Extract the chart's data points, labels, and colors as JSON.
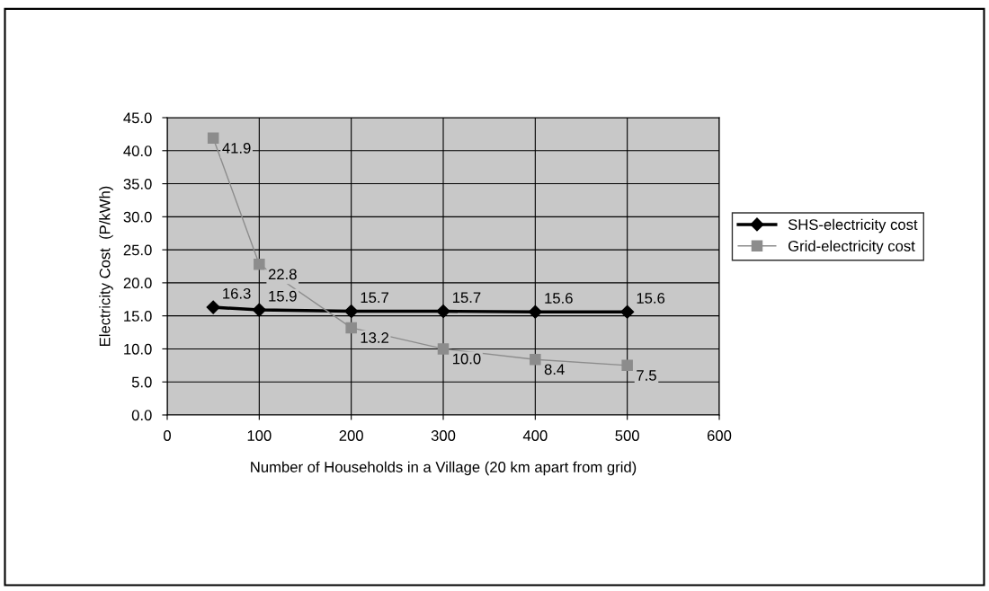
{
  "chart_data": {
    "type": "line",
    "xlabel": "Number of Households in a Village (20 km apart from grid)",
    "ylabel": "Electricity Cost  (P/kWh)",
    "x": [
      50,
      100,
      200,
      300,
      400,
      500
    ],
    "series": [
      {
        "name": "SHS-electricity cost",
        "color": "#000000",
        "marker": "diamond",
        "values": [
          16.3,
          15.9,
          15.7,
          15.7,
          15.6,
          15.6
        ],
        "value_labels": [
          "16.3",
          "15.9",
          "15.7",
          "15.7",
          "15.6",
          "15.6"
        ]
      },
      {
        "name": "Grid-electricity cost",
        "color": "#8c8c8c",
        "marker": "square",
        "values": [
          41.9,
          22.8,
          13.2,
          10.0,
          8.4,
          7.5
        ],
        "value_labels": [
          "41.9",
          "22.8",
          "13.2",
          "10.0",
          "8.4",
          "7.5"
        ]
      }
    ],
    "xlim": [
      0,
      600
    ],
    "xticks": [
      0,
      100,
      200,
      300,
      400,
      500,
      600
    ],
    "ylim": [
      0,
      45
    ],
    "yticks": [
      {
        "value": 0,
        "label": "0.0"
      },
      {
        "value": 5,
        "label": "5.0"
      },
      {
        "value": 10,
        "label": "10.0"
      },
      {
        "value": 15,
        "label": "15.0"
      },
      {
        "value": 20,
        "label": "20.0"
      },
      {
        "value": 25,
        "label": "25.0"
      },
      {
        "value": 30,
        "label": "30.0"
      },
      {
        "value": 35,
        "label": "35.0"
      },
      {
        "value": 40,
        "label": "40.0"
      },
      {
        "value": 45,
        "label": "45.0"
      }
    ],
    "grid": true,
    "legend": "right",
    "line_style": "solid"
  }
}
